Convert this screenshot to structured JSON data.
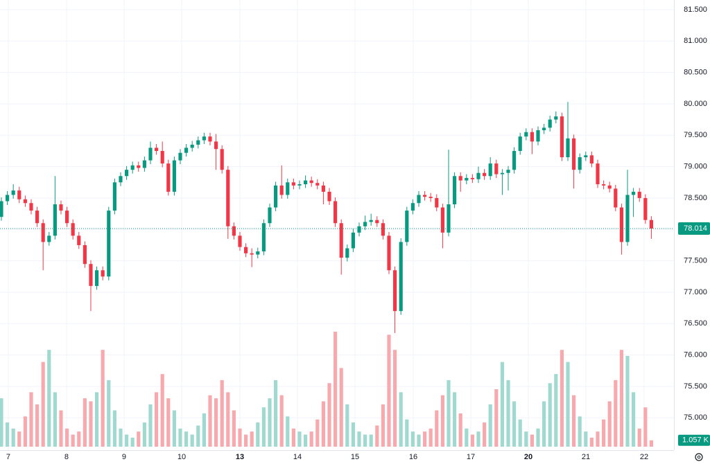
{
  "chart_data": {
    "type": "candlestick",
    "open": [
      78.2,
      78.45,
      78.55,
      78.62,
      78.48,
      78.42,
      78.3,
      78.1,
      77.8,
      77.9,
      78.4,
      78.3,
      78.1,
      77.9,
      77.75,
      77.45,
      77.1,
      77.35,
      77.25,
      78.3,
      78.75,
      78.85,
      78.95,
      79.02,
      78.98,
      79.1,
      79.3,
      79.25,
      79.05,
      78.6,
      79.1,
      79.22,
      79.3,
      79.35,
      79.42,
      79.48,
      79.4,
      79.28,
      78.95,
      78.05,
      77.9,
      77.72,
      77.62,
      77.6,
      77.65,
      78.1,
      78.35,
      78.7,
      78.55,
      78.75,
      78.7,
      78.72,
      78.78,
      78.74,
      78.7,
      78.6,
      78.45,
      78.1,
      77.55,
      77.7,
      77.95,
      78.05,
      78.12,
      78.15,
      78.1,
      77.9,
      77.35,
      76.7,
      77.8,
      78.3,
      78.42,
      78.55,
      78.52,
      78.5,
      78.35,
      77.95,
      78.4,
      78.85,
      78.78,
      78.82,
      78.8,
      78.9,
      78.85,
      79.05,
      78.88,
      78.9,
      78.95,
      79.25,
      79.48,
      79.55,
      79.4,
      79.58,
      79.62,
      79.75,
      79.8,
      79.15,
      79.45,
      78.95,
      79.15,
      79.18,
      79.05,
      78.72,
      78.7,
      78.65,
      78.35,
      77.8,
      78.55,
      78.6,
      78.5,
      78.15
    ],
    "high": [
      78.51,
      78.61,
      78.72,
      78.68,
      78.54,
      78.48,
      78.36,
      78.16,
      77.96,
      78.85,
      78.46,
      78.36,
      78.16,
      77.96,
      77.81,
      77.51,
      77.41,
      77.41,
      78.36,
      78.81,
      78.91,
      79.01,
      79.08,
      79.08,
      79.16,
      79.4,
      79.36,
      79.4,
      79.11,
      79.16,
      79.28,
      79.36,
      79.41,
      79.48,
      79.54,
      79.54,
      79.52,
      79.34,
      79.01,
      78.11,
      77.96,
      77.78,
      77.7,
      77.71,
      78.16,
      78.41,
      78.76,
      79.02,
      78.81,
      78.81,
      78.78,
      78.86,
      78.84,
      78.8,
      78.76,
      78.66,
      78.51,
      78.16,
      77.76,
      78.01,
      78.11,
      78.22,
      78.25,
      78.21,
      78.16,
      77.96,
      77.41,
      77.86,
      78.36,
      78.48,
      78.61,
      78.61,
      78.58,
      78.56,
      78.41,
      79.27,
      78.91,
      78.91,
      78.88,
      78.88,
      79.0,
      78.96,
      79.15,
      79.11,
      78.96,
      79.01,
      79.31,
      79.54,
      79.61,
      79.61,
      79.64,
      79.68,
      79.81,
      79.88,
      79.86,
      80.03,
      79.51,
      79.21,
      79.24,
      79.24,
      79.11,
      78.78,
      78.76,
      78.71,
      78.41,
      78.95,
      78.66,
      78.66,
      78.56,
      78.21
    ],
    "low": [
      78.14,
      78.39,
      78.49,
      78.42,
      78.36,
      78.24,
      78.04,
      77.35,
      77.74,
      77.84,
      78.24,
      78.04,
      77.84,
      77.69,
      77.39,
      76.7,
      77.04,
      77.19,
      77.19,
      78.24,
      78.69,
      78.79,
      78.89,
      78.92,
      78.92,
      79.04,
      79.19,
      78.99,
      78.54,
      78.54,
      79.04,
      79.16,
      79.24,
      79.29,
      79.36,
      79.34,
      78.95,
      78.89,
      77.85,
      77.84,
      77.66,
      77.56,
      77.4,
      77.54,
      77.59,
      78.04,
      78.29,
      78.49,
      78.49,
      78.64,
      78.64,
      78.66,
      78.68,
      78.64,
      78.4,
      78.39,
      78.04,
      77.28,
      77.49,
      77.64,
      77.89,
      77.99,
      78.06,
      78.04,
      77.84,
      77.29,
      76.35,
      76.64,
      77.74,
      78.24,
      78.36,
      78.46,
      78.44,
      78.29,
      77.7,
      77.89,
      78.34,
      78.6,
      78.72,
      78.74,
      78.74,
      78.79,
      78.79,
      78.82,
      78.55,
      78.62,
      78.89,
      79.19,
      79.42,
      79.2,
      79.34,
      79.52,
      79.56,
      79.69,
      79.09,
      79.09,
      78.65,
      78.89,
      79.09,
      78.99,
      78.66,
      78.64,
      78.59,
      78.29,
      77.6,
      77.74,
      78.2,
      78.44,
      78.09,
      77.85
    ],
    "close": [
      78.45,
      78.55,
      78.62,
      78.48,
      78.42,
      78.3,
      78.1,
      77.8,
      77.9,
      78.4,
      78.3,
      78.1,
      77.9,
      77.75,
      77.45,
      77.1,
      77.35,
      77.25,
      78.3,
      78.75,
      78.85,
      78.95,
      79.02,
      78.98,
      79.1,
      79.3,
      79.25,
      79.05,
      78.6,
      79.1,
      79.22,
      79.3,
      79.35,
      79.42,
      79.48,
      79.4,
      79.28,
      78.95,
      78.05,
      77.9,
      77.72,
      77.62,
      77.6,
      77.65,
      78.1,
      78.35,
      78.7,
      78.55,
      78.75,
      78.7,
      78.72,
      78.78,
      78.74,
      78.7,
      78.6,
      78.45,
      78.1,
      77.55,
      77.7,
      77.95,
      78.05,
      78.12,
      78.15,
      78.1,
      77.9,
      77.35,
      76.7,
      77.8,
      78.3,
      78.42,
      78.55,
      78.52,
      78.5,
      78.35,
      77.95,
      78.4,
      78.85,
      78.78,
      78.82,
      78.8,
      78.9,
      78.85,
      79.05,
      78.88,
      78.9,
      78.95,
      79.25,
      79.48,
      79.55,
      79.4,
      79.58,
      79.62,
      79.75,
      79.8,
      79.15,
      79.45,
      78.95,
      79.15,
      79.18,
      79.05,
      78.72,
      78.7,
      78.65,
      78.35,
      77.8,
      78.55,
      78.6,
      78.5,
      78.15,
      78.014
    ],
    "volume": [
      8000,
      4000,
      3000,
      2500,
      5000,
      9000,
      7000,
      14000,
      16000,
      9000,
      6000,
      3000,
      2000,
      2500,
      8000,
      7500,
      9000,
      16000,
      11000,
      6000,
      3000,
      2000,
      1500,
      2500,
      4000,
      7000,
      9000,
      12000,
      8000,
      6000,
      3000,
      2500,
      2000,
      3500,
      5500,
      8500,
      8000,
      11000,
      9000,
      6000,
      3000,
      2000,
      2500,
      4000,
      6500,
      8000,
      11000,
      8500,
      5000,
      3000,
      2500,
      2000,
      2500,
      4500,
      7500,
      10500,
      19000,
      13000,
      7000,
      4000,
      2500,
      2000,
      2000,
      3500,
      7000,
      18500,
      16000,
      9000,
      4500,
      2500,
      2000,
      2500,
      3000,
      6000,
      8500,
      11000,
      9000,
      5500,
      3000,
      2000,
      2500,
      4000,
      7000,
      9500,
      14000,
      11000,
      7500,
      4500,
      2500,
      2000,
      3000,
      7500,
      10500,
      12000,
      16000,
      14000,
      8500,
      5000,
      2500,
      1500,
      2500,
      4500,
      7500,
      11000,
      16000,
      15000,
      9000,
      3000,
      6500,
      1057
    ],
    "last_volume": {
      "value": 1057,
      "label": "1.057 K"
    },
    "xlim": [
      -0.23,
      112.79
    ],
    "xticks": [
      {
        "value": 1.16,
        "label": "7"
      },
      {
        "value": 10.93,
        "label": "8"
      },
      {
        "value": 20.58,
        "label": "9"
      },
      {
        "value": 30.23,
        "label": "10"
      },
      {
        "value": 40.0,
        "label": "13",
        "bold": true
      },
      {
        "value": 49.65,
        "label": "14"
      },
      {
        "value": 59.3,
        "label": "15"
      },
      {
        "value": 69.07,
        "label": "16"
      },
      {
        "value": 78.72,
        "label": "17"
      },
      {
        "value": 88.37,
        "label": "20",
        "bold": true
      },
      {
        "value": 98.02,
        "label": "21"
      },
      {
        "value": 107.79,
        "label": "22"
      }
    ],
    "ylim": [
      74.485,
      81.654
    ],
    "yticks": [
      {
        "value": 75,
        "label": "75.000"
      },
      {
        "value": 75.5,
        "label": "75.500"
      },
      {
        "value": 76,
        "label": "76.000"
      },
      {
        "value": 76.5,
        "label": "76.500"
      },
      {
        "value": 77,
        "label": "77.000"
      },
      {
        "value": 77.5,
        "label": "77.500"
      },
      {
        "value": 78,
        "label": "78.000"
      },
      {
        "value": 78.5,
        "label": "78.500"
      },
      {
        "value": 79,
        "label": "79.000"
      },
      {
        "value": 79.5,
        "label": "79.500"
      },
      {
        "value": 80,
        "label": "80.000"
      },
      {
        "value": 80.5,
        "label": "80.500"
      },
      {
        "value": 81,
        "label": "81.000"
      },
      {
        "value": 81.5,
        "label": "81.500"
      }
    ],
    "grid": true,
    "up_color": "#089981",
    "down_color": "#f23645",
    "volume_up_color": "#9fd9cf",
    "volume_down_color": "#f7a9ad"
  }
}
